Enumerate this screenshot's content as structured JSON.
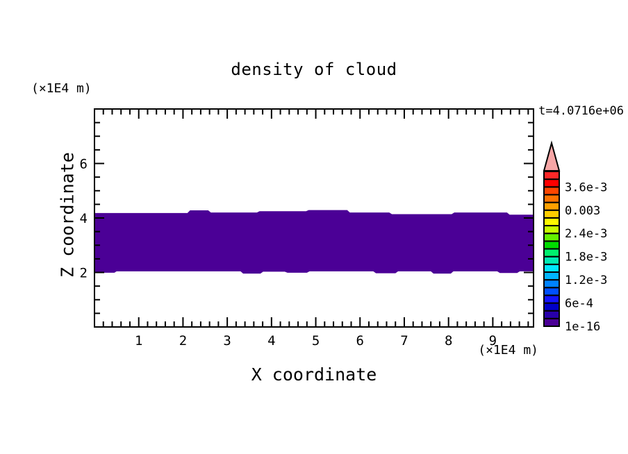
{
  "chart_data": {
    "type": "contour",
    "title": "density of cloud",
    "time_label": "t=4.0716e+06",
    "xlabel": "X coordinate",
    "ylabel": "Z coordinate",
    "x_unit": "(×1E4 m)",
    "y_unit": "(×1E4 m)",
    "x_range": [
      0,
      9.92
    ],
    "y_range": [
      0,
      8
    ],
    "x_major_ticks": [
      1,
      2,
      3,
      4,
      5,
      6,
      7,
      8,
      9
    ],
    "x_minor_step": 0.2,
    "y_major_ticks": [
      2,
      4,
      6
    ],
    "y_minor_step": 0.5,
    "grid": false,
    "band": {
      "value": "1e-16",
      "color": "#4B0096",
      "top_edge": [
        [
          0,
          4.18
        ],
        [
          2.1,
          4.18
        ],
        [
          2.16,
          4.28
        ],
        [
          2.57,
          4.28
        ],
        [
          2.63,
          4.2
        ],
        [
          3.67,
          4.2
        ],
        [
          3.73,
          4.25
        ],
        [
          4.78,
          4.25
        ],
        [
          4.84,
          4.29
        ],
        [
          5.71,
          4.29
        ],
        [
          5.77,
          4.2
        ],
        [
          6.66,
          4.2
        ],
        [
          6.72,
          4.14
        ],
        [
          8.07,
          4.14
        ],
        [
          8.13,
          4.2
        ],
        [
          9.32,
          4.2
        ],
        [
          9.38,
          4.12
        ],
        [
          9.92,
          4.12
        ]
      ],
      "bottom_edge": [
        [
          0,
          1.99
        ],
        [
          0.45,
          1.99
        ],
        [
          0.5,
          2.04
        ],
        [
          3.3,
          2.04
        ],
        [
          3.36,
          1.96
        ],
        [
          3.75,
          1.96
        ],
        [
          3.81,
          2.03
        ],
        [
          4.3,
          2.03
        ],
        [
          4.36,
          1.99
        ],
        [
          4.8,
          1.99
        ],
        [
          4.86,
          2.04
        ],
        [
          6.3,
          2.04
        ],
        [
          6.36,
          1.97
        ],
        [
          6.8,
          1.97
        ],
        [
          6.86,
          2.04
        ],
        [
          7.6,
          2.04
        ],
        [
          7.66,
          1.96
        ],
        [
          8.05,
          1.96
        ],
        [
          8.11,
          2.04
        ],
        [
          9.1,
          2.04
        ],
        [
          9.16,
          1.98
        ],
        [
          9.55,
          1.98
        ],
        [
          9.61,
          2.04
        ],
        [
          9.92,
          2.04
        ]
      ]
    },
    "colorbar": {
      "arrow_color": "#F7A6A6",
      "segment_colors": [
        "#4B0096",
        "#2800AA",
        "#0000C8",
        "#1414FF",
        "#0050FF",
        "#0082FF",
        "#00B4FF",
        "#00E6FF",
        "#00EBB4",
        "#00F06E",
        "#00DC00",
        "#64F000",
        "#C8FF00",
        "#FFFA00",
        "#FFCD00",
        "#FFA000",
        "#FF7300",
        "#FF4600",
        "#FF0000",
        "#FF2828"
      ],
      "labels": [
        {
          "text": "3.6e-3",
          "boundary": 18
        },
        {
          "text": "0.003",
          "boundary": 15
        },
        {
          "text": "2.4e-3",
          "boundary": 12
        },
        {
          "text": "1.8e-3",
          "boundary": 9
        },
        {
          "text": "1.2e-3",
          "boundary": 6
        },
        {
          "text": "6e-4",
          "boundary": 3
        },
        {
          "text": "1e-16",
          "boundary": 0
        }
      ]
    }
  }
}
